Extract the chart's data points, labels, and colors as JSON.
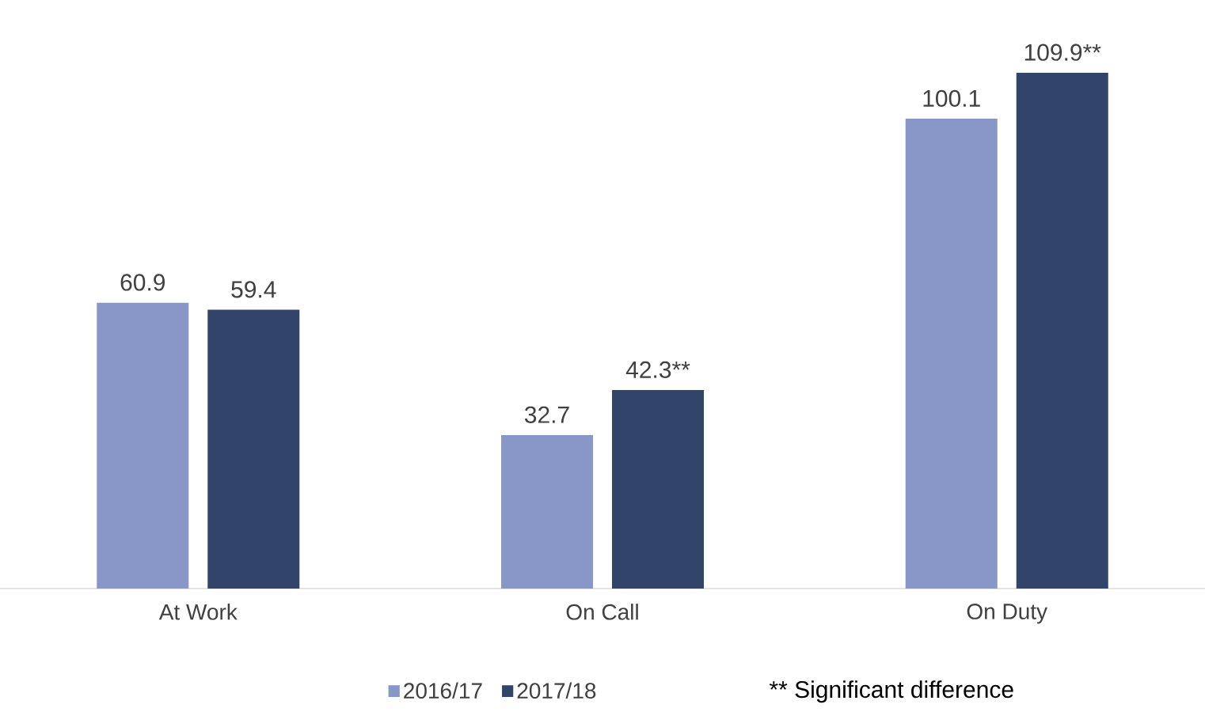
{
  "chart_data": {
    "type": "bar",
    "categories": [
      "At Work",
      "On Call",
      "On Duty"
    ],
    "series": [
      {
        "name": "2016/17",
        "color": "#8896c8",
        "values": [
          60.9,
          32.7,
          100.1
        ],
        "value_labels": [
          "60.9",
          "32.7",
          "100.1"
        ]
      },
      {
        "name": "2017/18",
        "color": "#33446b",
        "values": [
          59.4,
          42.3,
          109.9
        ],
        "value_labels": [
          "59.4",
          "42.3**",
          "109.9**"
        ]
      }
    ],
    "legend": "bottom",
    "annotations": [
      "** Significant difference"
    ]
  }
}
